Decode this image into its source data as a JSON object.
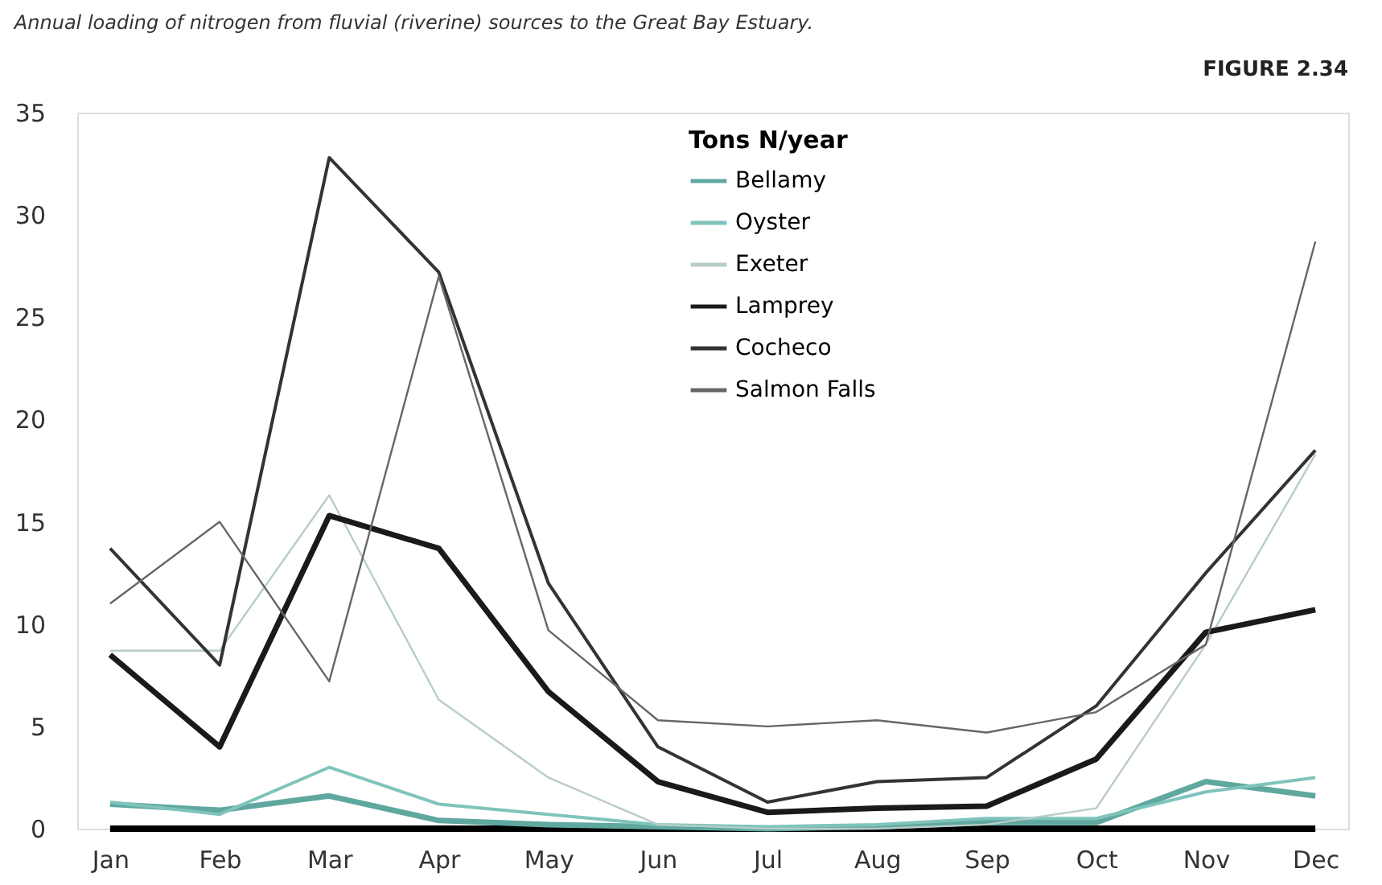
{
  "chart_data": {
    "type": "line",
    "title": "Annual loading of nitrogen from fluvial (riverine) sources to the Great Bay Estuary.",
    "annotations": [
      "FIGURE 2.34"
    ],
    "legend_title": "Tons N/year",
    "legend": "top",
    "grid": false,
    "marker": "none",
    "line_style": "solid",
    "categories": [
      "Jan",
      "Feb",
      "Mar",
      "Apr",
      "May",
      "Jun",
      "Jul",
      "Aug",
      "Sep",
      "Oct",
      "Nov",
      "Dec"
    ],
    "ylim": [
      0,
      35
    ],
    "yticks": [
      0,
      5,
      10,
      15,
      20,
      25,
      30,
      35
    ],
    "series": [
      {
        "name": "Bellamy",
        "color": "#5fa8a0",
        "values": [
          1.2,
          0.9,
          1.6,
          0.4,
          0.2,
          0.1,
          0,
          0.1,
          0.3,
          0.3,
          2.3,
          1.6
        ]
      },
      {
        "name": "Oyster",
        "color": "#7fc4bc",
        "values": [
          1.3,
          0.7,
          3,
          1.2,
          0.7,
          0.2,
          0.1,
          0.2,
          0.5,
          0.5,
          1.8,
          2.5
        ]
      },
      {
        "name": "Exeter",
        "color": "#b8ccc8",
        "values": [
          8.7,
          8.7,
          16.3,
          6.3,
          2.5,
          0.2,
          0,
          0,
          0.2,
          1,
          9,
          18.3
        ]
      },
      {
        "name": "Lamprey",
        "color": "#1a1a1a",
        "values": [
          8.5,
          4,
          15.3,
          13.7,
          6.7,
          2.3,
          0.8,
          1,
          1.1,
          3.4,
          9.6,
          10.7
        ]
      },
      {
        "name": "Cocheco",
        "color": "#333333",
        "values": [
          13.7,
          8,
          32.8,
          27.2,
          12,
          4,
          1.3,
          2.3,
          2.5,
          6,
          12.5,
          18.5
        ]
      },
      {
        "name": "Salmon Falls",
        "color": "#666666",
        "values": [
          11,
          15,
          7.2,
          27,
          9.7,
          5.3,
          5,
          5.3,
          4.7,
          5.7,
          9,
          28.7
        ]
      }
    ]
  }
}
